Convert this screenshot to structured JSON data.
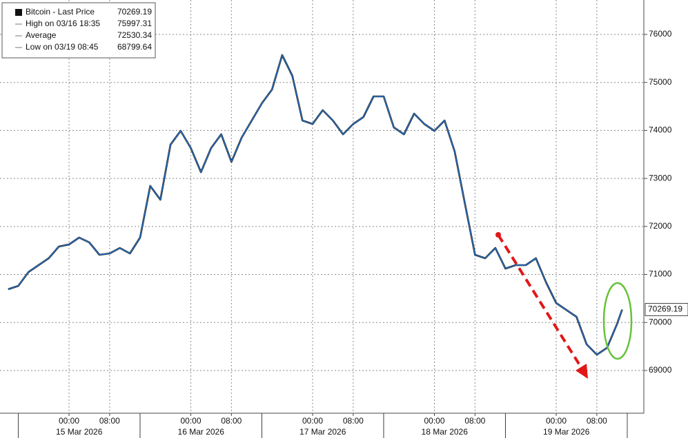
{
  "chart_data": {
    "type": "line",
    "legend": [
      {
        "label": "Bitcoin - Last Price",
        "value": 70269.19
      },
      {
        "label": "High on 03/16 18:35",
        "value": 75997.31
      },
      {
        "label": "Average",
        "value": 72530.34
      },
      {
        "label": "Low on 03/19 08:45",
        "value": 68799.64
      }
    ],
    "x": [
      "2026-03-14T12:00",
      "2026-03-14T14:00",
      "2026-03-14T16:00",
      "2026-03-14T18:00",
      "2026-03-14T20:00",
      "2026-03-14T22:00",
      "2026-03-15T00:00",
      "2026-03-15T02:00",
      "2026-03-15T04:00",
      "2026-03-15T06:00",
      "2026-03-15T08:00",
      "2026-03-15T10:00",
      "2026-03-15T12:00",
      "2026-03-15T14:00",
      "2026-03-15T16:00",
      "2026-03-15T18:00",
      "2026-03-15T20:00",
      "2026-03-15T22:00",
      "2026-03-16T00:00",
      "2026-03-16T02:00",
      "2026-03-16T04:00",
      "2026-03-16T06:00",
      "2026-03-16T08:00",
      "2026-03-16T10:00",
      "2026-03-16T12:00",
      "2026-03-16T14:00",
      "2026-03-16T16:00",
      "2026-03-16T18:00",
      "2026-03-16T20:00",
      "2026-03-16T22:00",
      "2026-03-17T00:00",
      "2026-03-17T02:00",
      "2026-03-17T04:00",
      "2026-03-17T06:00",
      "2026-03-17T08:00",
      "2026-03-17T10:00",
      "2026-03-17T12:00",
      "2026-03-17T14:00",
      "2026-03-17T16:00",
      "2026-03-17T18:00",
      "2026-03-17T20:00",
      "2026-03-17T22:00",
      "2026-03-18T00:00",
      "2026-03-18T02:00",
      "2026-03-18T04:00",
      "2026-03-18T06:00",
      "2026-03-18T08:00",
      "2026-03-18T10:00",
      "2026-03-18T12:00",
      "2026-03-18T14:00",
      "2026-03-18T16:00",
      "2026-03-18T18:00",
      "2026-03-18T20:00",
      "2026-03-18T22:00",
      "2026-03-19T00:00",
      "2026-03-19T02:00",
      "2026-03-19T04:00",
      "2026-03-19T06:00",
      "2026-03-19T08:00",
      "2026-03-19T10:00",
      "2026-03-19T12:00",
      "2026-03-19T13:00"
    ],
    "series": [
      {
        "name": "Bitcoin - Last Price",
        "color": "#2a78d0",
        "values": [
          70692,
          70763,
          71050,
          71194,
          71337,
          71581,
          71624,
          71768,
          71667,
          71409,
          71438,
          71552,
          71438,
          71768,
          72844,
          72557,
          73704,
          73991,
          73633,
          73131,
          73633,
          73920,
          73346,
          73848,
          74207,
          74565,
          74852,
          75570,
          75139,
          74207,
          74135,
          74422,
          74207,
          73920,
          74135,
          74278,
          74709,
          74709,
          74063,
          73920,
          74350,
          74135,
          73991,
          74207,
          73561,
          72485,
          71409,
          71337,
          71552,
          71122,
          71194,
          71194,
          71337,
          70835,
          70405,
          70261,
          70118,
          69544,
          69329,
          69472,
          69974,
          70269.19
        ]
      }
    ],
    "xlim": [
      "2026-03-14T10:24",
      "2026-03-19T17:16"
    ],
    "ylim": [
      68110,
      76717
    ],
    "yticks": [
      69000,
      70000,
      71000,
      72000,
      73000,
      74000,
      75000,
      76000
    ],
    "xticks": [
      {
        "value": "2026-03-15T00:00",
        "label": "00:00"
      },
      {
        "value": "2026-03-15T08:00",
        "label": "08:00"
      },
      {
        "value": "2026-03-16T00:00",
        "label": "00:00"
      },
      {
        "value": "2026-03-16T08:00",
        "label": "08:00"
      },
      {
        "value": "2026-03-17T00:00",
        "label": "00:00"
      },
      {
        "value": "2026-03-17T08:00",
        "label": "08:00"
      },
      {
        "value": "2026-03-18T00:00",
        "label": "00:00"
      },
      {
        "value": "2026-03-18T08:00",
        "label": "08:00"
      },
      {
        "value": "2026-03-19T00:00",
        "label": "00:00"
      },
      {
        "value": "2026-03-19T08:00",
        "label": "08:00"
      }
    ],
    "date_labels": [
      {
        "value": "2026-03-15T02:00",
        "label": "15 Mar 2026"
      },
      {
        "value": "2026-03-16T02:00",
        "label": "16 Mar 2026"
      },
      {
        "value": "2026-03-17T02:00",
        "label": "17 Mar 2026"
      },
      {
        "value": "2026-03-18T02:00",
        "label": "18 Mar 2026"
      },
      {
        "value": "2026-03-19T02:00",
        "label": "19 Mar 2026"
      }
    ],
    "grid": true
  }
}
